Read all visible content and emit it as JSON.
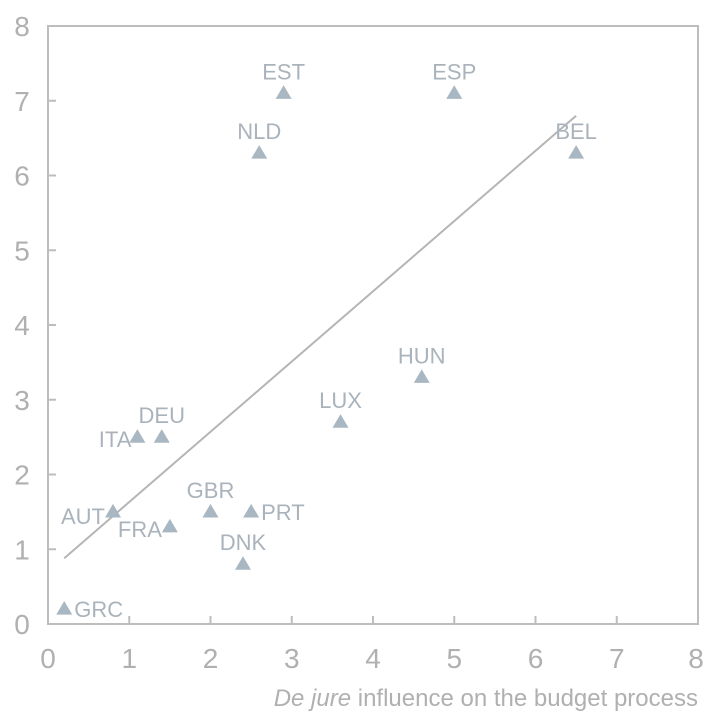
{
  "chart_data": {
    "type": "scatter",
    "xlabel_italic": "De jure",
    "xlabel_rest": " influence on the budget process",
    "ylabel": "",
    "xlim": [
      0,
      8
    ],
    "ylim": [
      0,
      8
    ],
    "x_ticks": [
      "0",
      "1",
      "2",
      "3",
      "4",
      "5",
      "6",
      "7",
      "8"
    ],
    "y_ticks": [
      "0",
      "1",
      "2",
      "3",
      "4",
      "5",
      "6",
      "7",
      "8"
    ],
    "grid": false,
    "colors": {
      "marker": "#a9b7c2",
      "trend": "#b5b5b5",
      "frame": "#bdbdbd",
      "text": "#b0b0b0"
    },
    "points": [
      {
        "label": "GRC",
        "x": 0.2,
        "y": 0.2
      },
      {
        "label": "AUT",
        "x": 0.8,
        "y": 1.5
      },
      {
        "label": "ITA",
        "x": 1.1,
        "y": 2.5
      },
      {
        "label": "DEU",
        "x": 1.4,
        "y": 2.5
      },
      {
        "label": "FRA",
        "x": 1.5,
        "y": 1.3
      },
      {
        "label": "GBR",
        "x": 2.0,
        "y": 1.5
      },
      {
        "label": "DNK",
        "x": 2.4,
        "y": 0.8
      },
      {
        "label": "PRT",
        "x": 2.5,
        "y": 1.5
      },
      {
        "label": "NLD",
        "x": 2.6,
        "y": 6.3
      },
      {
        "label": "EST",
        "x": 2.9,
        "y": 7.1
      },
      {
        "label": "LUX",
        "x": 3.6,
        "y": 2.7
      },
      {
        "label": "HUN",
        "x": 4.6,
        "y": 3.3
      },
      {
        "label": "ESP",
        "x": 5.0,
        "y": 7.1
      },
      {
        "label": "BEL",
        "x": 6.5,
        "y": 6.3
      }
    ],
    "trendline": {
      "x": [
        0.2,
        6.5
      ],
      "y": [
        0.88,
        6.8
      ]
    }
  }
}
